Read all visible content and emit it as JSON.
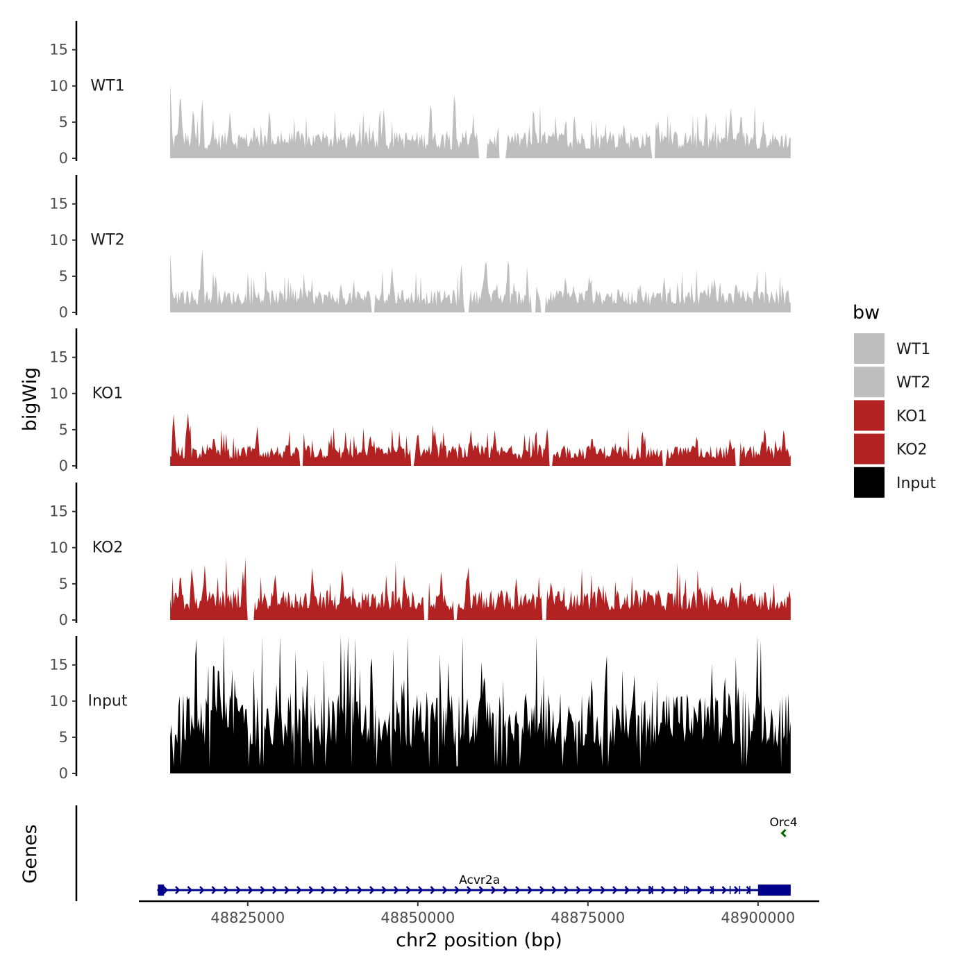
{
  "chart_data": {
    "type": "area",
    "title": "",
    "xlabel": "chr2 position (bp)",
    "ylabel": "bigWig",
    "genes_label": "Genes",
    "xlim": [
      48809000,
      48909000
    ],
    "ylim": [
      0,
      19
    ],
    "y_ticks": [
      0,
      5,
      10,
      15
    ],
    "x_ticks": [
      {
        "value": 48825000,
        "label": "48825000"
      },
      {
        "value": 48850000,
        "label": "48850000"
      },
      {
        "value": 48875000,
        "label": "48875000"
      },
      {
        "value": 48900000,
        "label": "48900000"
      }
    ],
    "data_range": [
      48813600,
      48904800
    ],
    "legend": {
      "title": "bw",
      "position": "right",
      "entries": [
        {
          "label": "WT1",
          "color": "#bebebe"
        },
        {
          "label": "WT2",
          "color": "#bebebe"
        },
        {
          "label": "KO1",
          "color": "#b22222"
        },
        {
          "label": "KO2",
          "color": "#b22222"
        },
        {
          "label": "Input",
          "color": "#000000"
        }
      ]
    },
    "series": [
      {
        "name": "WT1",
        "color": "#bebebe",
        "baseline": 1.2,
        "peaks": [
          [
            48813600,
            10.2
          ],
          [
            48815100,
            9.8
          ],
          [
            48817000,
            7.5
          ],
          [
            48818300,
            8.6
          ],
          [
            48822400,
            6.8
          ],
          [
            48828200,
            7.1
          ],
          [
            48845000,
            7.0
          ],
          [
            48851900,
            8.5
          ],
          [
            48855400,
            9.8
          ],
          [
            48859800,
            7.2
          ],
          [
            48873000,
            6.5
          ],
          [
            48880300,
            5.2
          ],
          [
            48885300,
            5.5
          ],
          [
            48892400,
            7.0
          ],
          [
            48896000,
            7.5
          ]
        ],
        "gaps": [
          [
            48858900,
            48860100
          ],
          [
            48861900,
            48862900
          ],
          [
            48884300,
            48884900
          ]
        ]
      },
      {
        "name": "WT2",
        "color": "#bebebe",
        "baseline": 1.0,
        "peaks": [
          [
            48813600,
            8.2
          ],
          [
            48818300,
            9.3
          ],
          [
            48820300,
            5.5
          ],
          [
            48846200,
            6.5
          ],
          [
            48856400,
            6.7
          ],
          [
            48860000,
            8.2
          ],
          [
            48863300,
            8.2
          ],
          [
            48867300,
            5.0
          ],
          [
            48871700,
            5.3
          ],
          [
            48875200,
            5.4
          ],
          [
            48886200,
            5.0
          ],
          [
            48893600,
            5.0
          ],
          [
            48896800,
            4.5
          ]
        ],
        "gaps": [
          [
            48843100,
            48843700
          ],
          [
            48856900,
            48857500
          ],
          [
            48866700,
            48867400
          ],
          [
            48868100,
            48868700
          ]
        ]
      },
      {
        "name": "KO1",
        "color": "#b22222",
        "baseline": 0.9,
        "peaks": [
          [
            48814100,
            7.5
          ],
          [
            48816200,
            7.8
          ],
          [
            48820000,
            4.5
          ],
          [
            48826400,
            5.5
          ],
          [
            48843000,
            4.7
          ],
          [
            48850000,
            5.1
          ],
          [
            48852500,
            5.2
          ],
          [
            48857800,
            5.0
          ],
          [
            48861300,
            5.0
          ],
          [
            48869000,
            5.4
          ],
          [
            48875600,
            4.5
          ],
          [
            48883000,
            5.3
          ],
          [
            48891000,
            4.5
          ],
          [
            48895900,
            4.1
          ],
          [
            48901000,
            5.7
          ],
          [
            48903800,
            5.5
          ]
        ],
        "gaps": [
          [
            48832700,
            48833200
          ],
          [
            48849000,
            48849500
          ],
          [
            48869300,
            48869800
          ],
          [
            48886000,
            48886500
          ],
          [
            48896600,
            48897300
          ]
        ]
      },
      {
        "name": "KO2",
        "color": "#b22222",
        "baseline": 1.3,
        "peaks": [
          [
            48815100,
            7.0
          ],
          [
            48816800,
            7.8
          ],
          [
            48818700,
            7.8
          ],
          [
            48824300,
            6.8
          ],
          [
            48829000,
            6.7
          ],
          [
            48834500,
            7.3
          ],
          [
            48838900,
            7.5
          ],
          [
            48848000,
            6.5
          ],
          [
            48857400,
            8.0
          ],
          [
            48869600,
            5.8
          ],
          [
            48883300,
            5.0
          ],
          [
            48891500,
            4.8
          ],
          [
            48896000,
            4.6
          ],
          [
            48904600,
            4.3
          ]
        ],
        "gaps": [
          [
            48825000,
            48826000
          ],
          [
            48850800,
            48851500
          ],
          [
            48855300,
            48855800
          ],
          [
            48868300,
            48868900
          ]
        ]
      },
      {
        "name": "Input",
        "color": "#000000",
        "baseline": 3.5,
        "peaks": [
          [
            48819300,
            18.0
          ],
          [
            48820000,
            17.9
          ],
          [
            48820700,
            17.1
          ],
          [
            48816800,
            8.9
          ],
          [
            48824300,
            9.5
          ],
          [
            48827800,
            9.0
          ],
          [
            48831000,
            8.5
          ],
          [
            48839800,
            11.3
          ],
          [
            48846000,
            11.5
          ],
          [
            48849900,
            11.0
          ],
          [
            48854500,
            11.0
          ],
          [
            48855800,
            10.5
          ],
          [
            48859800,
            15.5
          ],
          [
            48862400,
            7.5
          ],
          [
            48867400,
            6.0
          ],
          [
            48873700,
            7.3
          ],
          [
            48879400,
            9.5
          ],
          [
            48886200,
            10.2
          ],
          [
            48891000,
            9.0
          ],
          [
            48895100,
            14.9
          ],
          [
            48897800,
            12.0
          ],
          [
            48899300,
            7.5
          ],
          [
            48901000,
            9.3
          ],
          [
            48903200,
            9.2
          ]
        ],
        "gaps": []
      }
    ],
    "genes": [
      {
        "name": "Acvr2a",
        "start": 48811700,
        "end": 48904800,
        "strand": "+",
        "color": "#00008b",
        "row": "lower",
        "exons": [
          [
            48811800,
            48812700
          ],
          [
            48900000,
            48904800
          ]
        ]
      },
      {
        "name": "Orc4",
        "start": 48903600,
        "end": 48903900,
        "strand": "-",
        "color": "#006400",
        "row": "upper",
        "exons": []
      }
    ]
  }
}
